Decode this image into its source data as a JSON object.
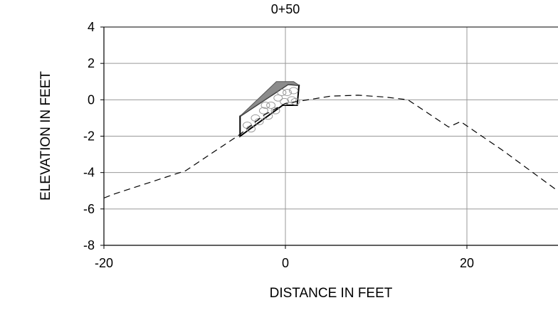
{
  "chart_data": {
    "type": "line",
    "title": "0+50",
    "xlabel": "DISTANCE IN FEET",
    "ylabel": "ELEVATION IN FEET",
    "xlim": [
      -20,
      30
    ],
    "ylim": [
      -8,
      4
    ],
    "x_ticks": [
      -20,
      0,
      20
    ],
    "x_tick_labels": [
      "-20",
      "0",
      "20"
    ],
    "y_ticks": [
      4,
      2,
      0,
      -2,
      -4,
      -6,
      -8
    ],
    "y_tick_labels": [
      "4",
      "2",
      "0",
      "-2",
      "-4",
      "-6",
      "-8"
    ],
    "grid": true,
    "colors": {
      "grid": "#999999",
      "axis": "#000000",
      "fill_dark": "#8c8c8c",
      "rock": "#ffffff"
    },
    "series": [
      {
        "style": "dashed",
        "x": [
          -20,
          -19,
          -11,
          -5,
          -2.4,
          0,
          5,
          8,
          11,
          13.5,
          18,
          19.3,
          24,
          30
        ],
        "y": [
          -5.4,
          -5.2,
          -3.9,
          -1.9,
          -0.85,
          -0.2,
          0.2,
          0.25,
          0.15,
          0,
          -1.5,
          -1.2,
          -2.8,
          -5
        ]
      }
    ],
    "annotations": [
      {
        "kind": "riprap-fill",
        "outline_x": [
          -5,
          -5,
          0.3,
          1.5,
          1.3,
          -0.3,
          -5
        ],
        "outline_y": [
          -2,
          -0.9,
          0.85,
          0.8,
          -0.3,
          -0.3,
          -2
        ]
      },
      {
        "kind": "cap-fill",
        "outline_x": [
          -5,
          -1,
          0.9,
          1.5,
          0.3
        ],
        "outline_y": [
          -0.9,
          1,
          1,
          0.8,
          0.85
        ]
      }
    ]
  }
}
